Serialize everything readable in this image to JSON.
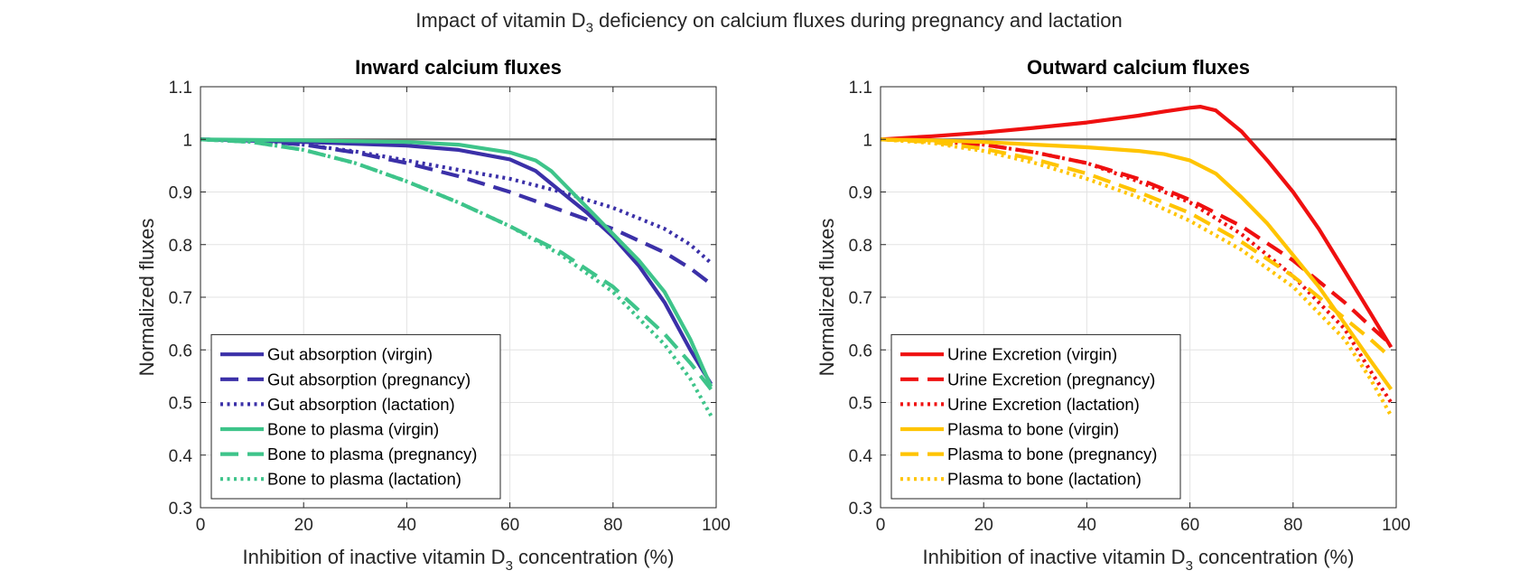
{
  "figure": {
    "title_main": "Impact of vitamin D",
    "title_sub": "3",
    "title_rest": " deficiency on calcium fluxes during pregnancy and lactation"
  },
  "colors": {
    "blue": "#3b30a8",
    "green": "#3ec48a",
    "red": "#ef1010",
    "yellow": "#ffc400",
    "reference": "#6e6e6e"
  },
  "chart_data": [
    {
      "type": "line",
      "title": "Inward calcium fluxes",
      "xlabel_main": "Inhibition of inactive vitamin D",
      "xlabel_sub": "3",
      "xlabel_rest": " concentration (%)",
      "ylabel": "Normalized fluxes",
      "xlim": [
        0,
        100
      ],
      "ylim": [
        0.3,
        1.1
      ],
      "xticks": [
        0,
        20,
        40,
        60,
        80,
        100
      ],
      "yticks": [
        0.3,
        0.4,
        0.5,
        0.6,
        0.7,
        0.8,
        0.9,
        1,
        1.1
      ],
      "grid": true,
      "legend_position": "bottom-left",
      "reference_line_y": 1,
      "series": [
        {
          "name": "Gut absorption (virgin)",
          "color": "#3b30a8",
          "style": "solid",
          "x": [
            0,
            20,
            40,
            50,
            60,
            65,
            70,
            75,
            80,
            85,
            90,
            95,
            99
          ],
          "y": [
            1.0,
            0.995,
            0.988,
            0.98,
            0.962,
            0.94,
            0.9,
            0.86,
            0.815,
            0.76,
            0.69,
            0.6,
            0.535
          ]
        },
        {
          "name": "Gut absorption (pregnancy)",
          "color": "#3b30a8",
          "style": "dashed",
          "x": [
            0,
            10,
            20,
            30,
            40,
            50,
            60,
            70,
            80,
            90,
            95,
            99
          ],
          "y": [
            1.0,
            0.998,
            0.99,
            0.975,
            0.955,
            0.93,
            0.9,
            0.865,
            0.83,
            0.785,
            0.755,
            0.725
          ]
        },
        {
          "name": "Gut absorption (lactation)",
          "color": "#3b30a8",
          "style": "dotted",
          "x": [
            0,
            10,
            20,
            30,
            40,
            50,
            60,
            70,
            80,
            90,
            95,
            99
          ],
          "y": [
            1.0,
            0.998,
            0.99,
            0.977,
            0.96,
            0.942,
            0.925,
            0.9,
            0.87,
            0.83,
            0.8,
            0.765
          ]
        },
        {
          "name": "Bone to plasma (virgin)",
          "color": "#3ec48a",
          "style": "solid",
          "x": [
            0,
            20,
            40,
            50,
            60,
            65,
            68,
            70,
            75,
            80,
            85,
            90,
            95,
            99
          ],
          "y": [
            1.0,
            0.998,
            0.995,
            0.99,
            0.975,
            0.96,
            0.94,
            0.92,
            0.87,
            0.82,
            0.77,
            0.71,
            0.62,
            0.53
          ]
        },
        {
          "name": "Bone to plasma (pregnancy)",
          "color": "#3ec48a",
          "style": "dashed",
          "x": [
            0,
            10,
            20,
            30,
            40,
            50,
            60,
            70,
            80,
            90,
            95,
            99
          ],
          "y": [
            1.0,
            0.995,
            0.98,
            0.955,
            0.92,
            0.88,
            0.835,
            0.785,
            0.72,
            0.63,
            0.575,
            0.525
          ]
        },
        {
          "name": "Bone to plasma (lactation)",
          "color": "#3ec48a",
          "style": "dotted",
          "x": [
            0,
            10,
            20,
            30,
            40,
            50,
            60,
            70,
            80,
            90,
            95,
            99
          ],
          "y": [
            1.0,
            0.995,
            0.98,
            0.955,
            0.92,
            0.88,
            0.835,
            0.78,
            0.71,
            0.61,
            0.545,
            0.475
          ]
        }
      ]
    },
    {
      "type": "line",
      "title": "Outward calcium fluxes",
      "xlabel_main": "Inhibition of inactive vitamin D",
      "xlabel_sub": "3",
      "xlabel_rest": " concentration (%)",
      "ylabel": "Normalized fluxes",
      "xlim": [
        0,
        100
      ],
      "ylim": [
        0.3,
        1.1
      ],
      "xticks": [
        0,
        20,
        40,
        60,
        80,
        100
      ],
      "yticks": [
        0.3,
        0.4,
        0.5,
        0.6,
        0.7,
        0.8,
        0.9,
        1,
        1.1
      ],
      "grid": true,
      "legend_position": "bottom-left",
      "reference_line_y": 1,
      "series": [
        {
          "name": "Urine Excretion (virgin)",
          "color": "#ef1010",
          "style": "solid",
          "x": [
            0,
            10,
            20,
            30,
            40,
            50,
            55,
            60,
            62,
            65,
            70,
            75,
            80,
            85,
            90,
            95,
            99
          ],
          "y": [
            1.0,
            1.006,
            1.013,
            1.022,
            1.032,
            1.045,
            1.053,
            1.06,
            1.062,
            1.055,
            1.015,
            0.96,
            0.9,
            0.83,
            0.75,
            0.67,
            0.605
          ]
        },
        {
          "name": "Urine Excretion (pregnancy)",
          "color": "#ef1010",
          "style": "dashed",
          "x": [
            0,
            10,
            20,
            30,
            40,
            50,
            60,
            70,
            80,
            90,
            95,
            99
          ],
          "y": [
            1.0,
            0.997,
            0.99,
            0.975,
            0.955,
            0.925,
            0.885,
            0.835,
            0.77,
            0.69,
            0.645,
            0.61
          ]
        },
        {
          "name": "Urine Excretion (lactation)",
          "color": "#ef1010",
          "style": "dotted",
          "x": [
            0,
            10,
            20,
            30,
            40,
            50,
            60,
            70,
            80,
            90,
            95,
            99
          ],
          "y": [
            1.0,
            0.997,
            0.99,
            0.975,
            0.955,
            0.92,
            0.88,
            0.82,
            0.74,
            0.64,
            0.56,
            0.5
          ]
        },
        {
          "name": "Plasma to bone (virgin)",
          "color": "#ffc400",
          "style": "solid",
          "x": [
            0,
            10,
            20,
            30,
            40,
            50,
            55,
            60,
            65,
            70,
            75,
            80,
            85,
            90,
            95,
            99
          ],
          "y": [
            1.0,
            0.998,
            0.995,
            0.99,
            0.985,
            0.978,
            0.972,
            0.96,
            0.935,
            0.89,
            0.84,
            0.78,
            0.72,
            0.65,
            0.58,
            0.525
          ]
        },
        {
          "name": "Plasma to bone (pregnancy)",
          "color": "#ffc400",
          "style": "dashed",
          "x": [
            0,
            10,
            20,
            30,
            40,
            50,
            60,
            70,
            80,
            90,
            95,
            99
          ],
          "y": [
            1.0,
            0.995,
            0.982,
            0.962,
            0.935,
            0.9,
            0.86,
            0.805,
            0.74,
            0.66,
            0.62,
            0.585
          ]
        },
        {
          "name": "Plasma to bone (lactation)",
          "color": "#ffc400",
          "style": "dotted",
          "x": [
            0,
            10,
            20,
            30,
            40,
            50,
            60,
            70,
            80,
            90,
            95,
            99
          ],
          "y": [
            1.0,
            0.993,
            0.978,
            0.955,
            0.925,
            0.89,
            0.845,
            0.79,
            0.72,
            0.62,
            0.545,
            0.475
          ]
        }
      ]
    }
  ]
}
